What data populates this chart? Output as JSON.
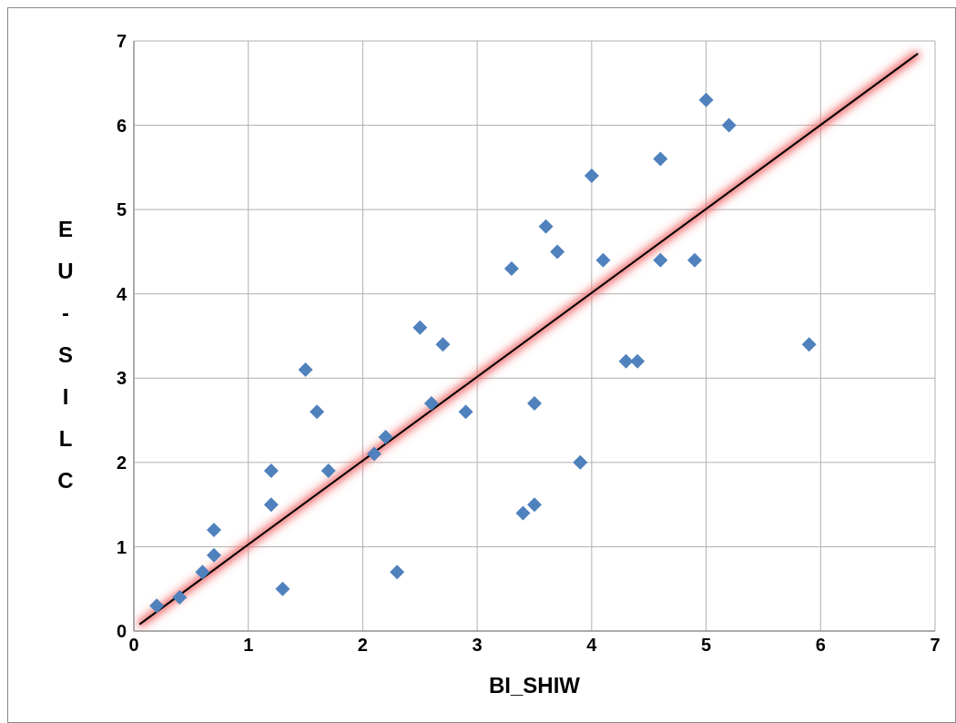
{
  "chart_data": {
    "type": "scatter",
    "xlabel": "BI_SHIW",
    "ylabel": "EU-SILC",
    "xlim": [
      0,
      7
    ],
    "ylim": [
      0,
      7
    ],
    "xticks": [
      0,
      1,
      2,
      3,
      4,
      5,
      6,
      7
    ],
    "yticks": [
      0,
      1,
      2,
      3,
      4,
      5,
      6,
      7
    ],
    "grid": true,
    "legend": false,
    "marker": "diamond",
    "series": [
      {
        "color": "#4f81bd",
        "x": [
          0.2,
          0.4,
          0.6,
          0.7,
          0.7,
          1.2,
          1.2,
          1.3,
          1.5,
          1.6,
          1.7,
          2.1,
          2.2,
          2.3,
          2.5,
          2.6,
          2.7,
          2.9,
          3.3,
          3.4,
          3.5,
          3.5,
          3.6,
          3.7,
          3.9,
          4.0,
          4.1,
          4.3,
          4.4,
          4.6,
          4.6,
          4.9,
          5.0,
          5.2,
          5.9
        ],
        "values": [
          0.3,
          0.4,
          0.7,
          0.9,
          1.2,
          1.5,
          1.9,
          0.5,
          3.1,
          2.6,
          1.9,
          2.1,
          2.3,
          0.7,
          3.6,
          2.7,
          3.4,
          2.6,
          4.3,
          1.4,
          1.5,
          2.7,
          4.8,
          4.5,
          2.0,
          5.4,
          4.4,
          3.2,
          3.2,
          5.6,
          4.4,
          4.4,
          6.3,
          6.0,
          3.4
        ]
      },
      {
        "type": "line",
        "marker": "none",
        "color": "#000000",
        "x": [
          0.05,
          6.85
        ],
        "values": [
          0.08,
          6.85
        ]
      }
    ]
  }
}
